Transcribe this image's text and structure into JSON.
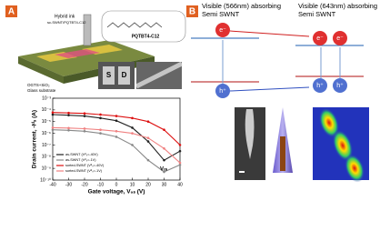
{
  "panel_a": {
    "label": "A",
    "hybrid_ink": "Hybrid ink",
    "ink_detail": "sc-SWNT/PQTBT4-C12",
    "polymer": "PQTBT4-C12",
    "source": "S",
    "drain": "D",
    "dielectric": "OGTS+SiO₂",
    "substrate": "Glass substrate"
  },
  "chart_data": {
    "type": "line",
    "xlabel": "Gate voltage, V₉ₛ (V)",
    "ylabel": "Drain current, -Iᵈₛ (A)",
    "log_y": true,
    "x": [
      -40,
      -30,
      -20,
      -10,
      0,
      10,
      20,
      30,
      40
    ],
    "xlim": [
      -40,
      40
    ],
    "xticks": [
      -40,
      -30,
      -20,
      -10,
      0,
      10,
      20,
      30,
      40
    ],
    "ylim": [
      1e-10,
      0.001
    ],
    "yticks": [
      {
        "value": 1e-10,
        "label": "10⁻¹⁰"
      },
      {
        "value": 1e-09,
        "label": "10⁻⁹"
      },
      {
        "value": 1e-08,
        "label": "10⁻⁸"
      },
      {
        "value": 1e-07,
        "label": "10⁻⁷"
      },
      {
        "value": 1e-06,
        "label": "10⁻⁶"
      },
      {
        "value": 1e-05,
        "label": "10⁻⁵"
      },
      {
        "value": 0.0001,
        "label": "10⁻⁴"
      },
      {
        "value": 0.001,
        "label": "10⁻³"
      }
    ],
    "series": [
      {
        "name": "as-SWNT (Vᵈₛ=-40V)",
        "color": "#222222",
        "values": [
          4e-05,
          3.5e-05,
          3e-05,
          2e-05,
          1.2e-05,
          3e-06,
          2e-07,
          5e-09,
          3e-08
        ]
      },
      {
        "name": "as-SWNT (Vᵈₛ=-1V)",
        "color": "#888888",
        "values": [
          2e-06,
          1.8e-06,
          1.5e-06,
          1e-06,
          5e-07,
          1e-07,
          5e-09,
          5e-10,
          2e-09
        ]
      },
      {
        "name": "sorted-SWNT (Vᵈₛ=-40V)",
        "color": "#dd1111",
        "values": [
          6e-05,
          5.5e-05,
          5e-05,
          4e-05,
          3e-05,
          2e-05,
          1e-05,
          2e-06,
          1e-07
        ]
      },
      {
        "name": "sorted-SWNT (Vᵈₛ=-1V)",
        "color": "#f08080",
        "values": [
          3e-06,
          2.8e-06,
          2.5e-06,
          2e-06,
          1.5e-06,
          1e-06,
          4e-07,
          5e-08,
          3e-09
        ]
      }
    ],
    "annotation": "Vₜₕ",
    "legend": "lower left"
  },
  "panel_b": {
    "label": "B",
    "left_title": "Visible (566nm) absorbing Semi SWNT",
    "right_title": "Visible (643nm) absorbing Semi SWNT",
    "electron": "e⁻",
    "hole": "h⁺"
  }
}
